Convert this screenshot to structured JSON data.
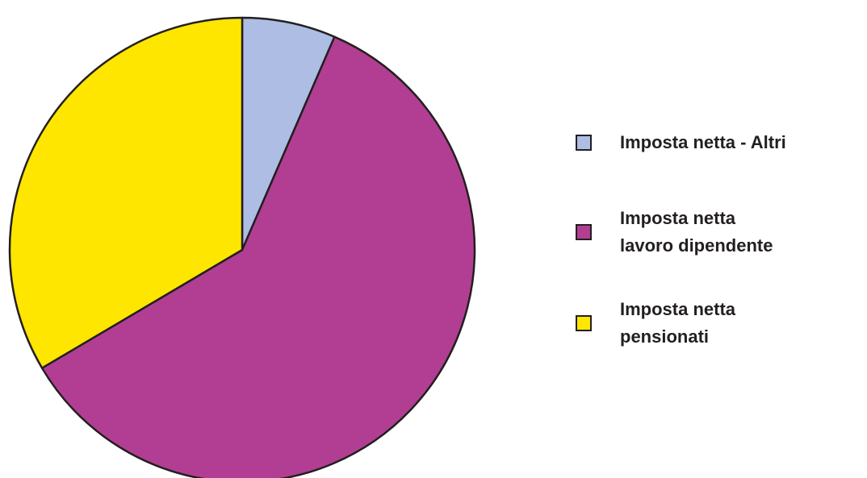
{
  "chart_data": {
    "type": "pie",
    "title": "",
    "start_angle_deg": 0,
    "direction": "clockwise",
    "slices": [
      {
        "label": "Imposta netta - Altri",
        "value": 6.5,
        "color": "#adbde3"
      },
      {
        "label": "Imposta netta\nlavoro dipendente",
        "value": 60.0,
        "color": "#b23e93"
      },
      {
        "label": "Imposta netta\npensionati",
        "value": 33.5,
        "color": "#ffe600"
      }
    ],
    "legend_position": "right",
    "show_percent_labels": false
  }
}
